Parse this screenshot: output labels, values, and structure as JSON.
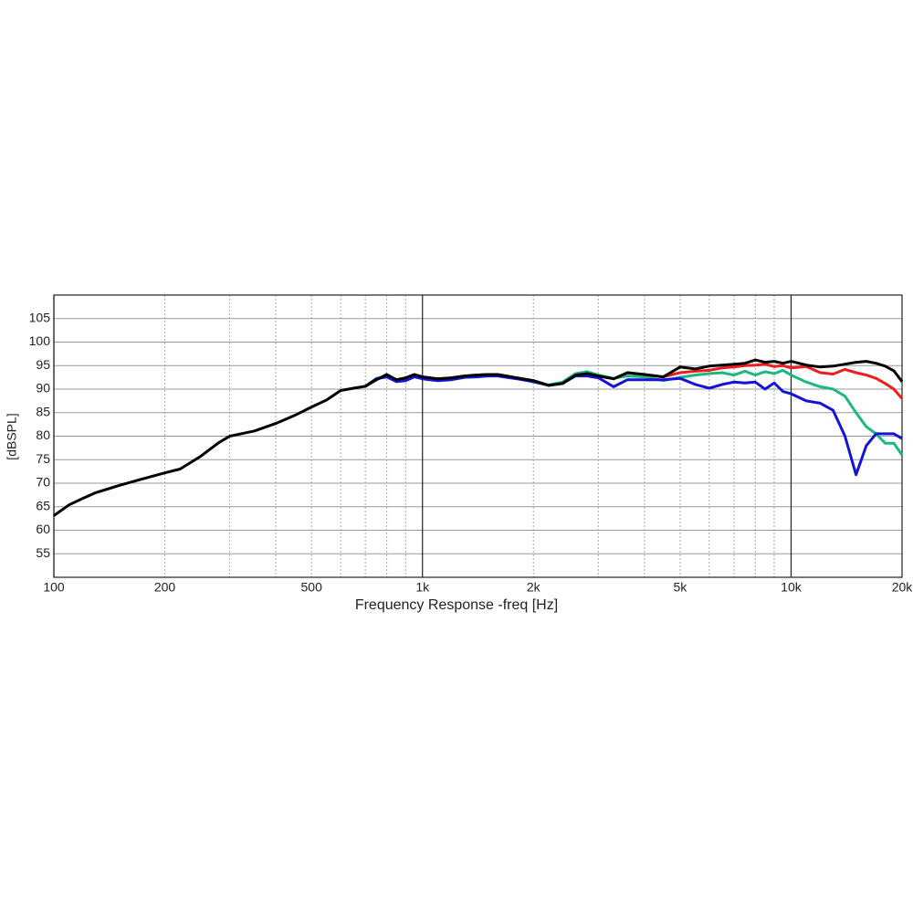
{
  "chart_data": {
    "type": "line",
    "xlabel": "Frequency Response -freq [Hz]",
    "ylabel": "[dBSPL]",
    "xscale": "log",
    "xlim": [
      100,
      20000
    ],
    "ylim": [
      50,
      110
    ],
    "xticks": [
      {
        "value": 100,
        "label": "100"
      },
      {
        "value": 200,
        "label": "200"
      },
      {
        "value": 500,
        "label": "500"
      },
      {
        "value": 1000,
        "label": "1k"
      },
      {
        "value": 2000,
        "label": "2k"
      },
      {
        "value": 5000,
        "label": "5k"
      },
      {
        "value": 10000,
        "label": "10k"
      },
      {
        "value": 20000,
        "label": "20k"
      }
    ],
    "xgrid_minor": [
      300,
      400,
      600,
      700,
      800,
      900,
      3000,
      4000,
      6000,
      7000,
      8000,
      9000
    ],
    "yticks": [
      55,
      60,
      65,
      70,
      75,
      80,
      85,
      90,
      95,
      100,
      105
    ],
    "grid": true,
    "x": [
      100,
      110,
      120,
      130,
      150,
      170,
      200,
      220,
      250,
      280,
      300,
      350,
      400,
      450,
      500,
      550,
      600,
      650,
      700,
      750,
      800,
      850,
      900,
      950,
      1000,
      1100,
      1200,
      1300,
      1400,
      1500,
      1600,
      1800,
      2000,
      2200,
      2400,
      2600,
      2800,
      3000,
      3300,
      3600,
      4000,
      4500,
      5000,
      5500,
      6000,
      6500,
      7000,
      7500,
      8000,
      8500,
      9000,
      9500,
      10000,
      11000,
      12000,
      13000,
      14000,
      15000,
      16000,
      17000,
      18000,
      19000,
      20000
    ],
    "series": [
      {
        "color": "#ee1c1c",
        "values": [
          null,
          null,
          null,
          null,
          null,
          null,
          null,
          null,
          null,
          null,
          null,
          null,
          null,
          null,
          null,
          null,
          null,
          null,
          90.6,
          92,
          93,
          92,
          92.3,
          93,
          92.6,
          92.2,
          92.4,
          92.8,
          93,
          93.1,
          93.1,
          92.4,
          91.8,
          90.8,
          91.2,
          93,
          93.3,
          92.8,
          92.2,
          93.5,
          93.1,
          92.6,
          93.5,
          93.8,
          94,
          94.5,
          94.7,
          95,
          95.1,
          95.3,
          94.8,
          95,
          94.5,
          94.8,
          93.5,
          93.2,
          94.2,
          93.5,
          93,
          92.3,
          91.2,
          90,
          88
        ]
      },
      {
        "color": "#1db87e",
        "values": [
          null,
          null,
          null,
          null,
          null,
          null,
          null,
          null,
          null,
          null,
          null,
          null,
          null,
          null,
          null,
          null,
          null,
          null,
          90.6,
          92.3,
          92.8,
          91.8,
          92,
          92.8,
          92.4,
          92,
          92.3,
          92.6,
          92.8,
          92.8,
          92.9,
          92.4,
          91.5,
          90.9,
          91.5,
          93.3,
          93.7,
          93,
          92.3,
          92.8,
          92.6,
          91.8,
          92.5,
          93,
          93.3,
          93.5,
          93,
          93.8,
          93,
          93.7,
          93.3,
          94,
          93,
          91.5,
          90.5,
          90,
          88.5,
          85,
          82,
          80.5,
          78.5,
          78.5,
          76
        ]
      },
      {
        "color": "#1414d6",
        "values": [
          null,
          null,
          null,
          null,
          null,
          null,
          null,
          null,
          null,
          null,
          null,
          null,
          null,
          null,
          null,
          null,
          null,
          null,
          90.6,
          92.2,
          92.6,
          91.6,
          91.8,
          92.6,
          92.2,
          91.8,
          92,
          92.5,
          92.6,
          92.8,
          92.8,
          92.2,
          91.6,
          90.8,
          91.2,
          92.8,
          92.8,
          92.4,
          90.5,
          92,
          92,
          92,
          92.3,
          91,
          90.2,
          91,
          91.5,
          91.3,
          91.5,
          90,
          91.3,
          89.5,
          89,
          87.5,
          87,
          85.5,
          80,
          71.8,
          78,
          80.5,
          80.5,
          80.5,
          79.5
        ]
      },
      {
        "color": "#000000",
        "values": [
          63.1,
          65.4,
          66.8,
          68,
          69.5,
          70.7,
          72.2,
          73,
          75.7,
          78.6,
          80,
          81.1,
          82.7,
          84.4,
          86.2,
          87.7,
          89.7,
          90.2,
          90.6,
          92,
          93.1,
          92,
          92.4,
          93.1,
          92.6,
          92.2,
          92.4,
          92.8,
          93,
          93.1,
          93.1,
          92.4,
          91.8,
          90.8,
          91.2,
          93,
          93.3,
          92.8,
          92.2,
          93.5,
          93.1,
          92.6,
          94.7,
          94.3,
          94.9,
          95.1,
          95.3,
          95.5,
          96.2,
          95.7,
          95.9,
          95.5,
          95.9,
          95.1,
          94.7,
          94.9,
          95.3,
          95.7,
          95.9,
          95.5,
          94.9,
          93.9,
          91.6
        ]
      }
    ]
  }
}
